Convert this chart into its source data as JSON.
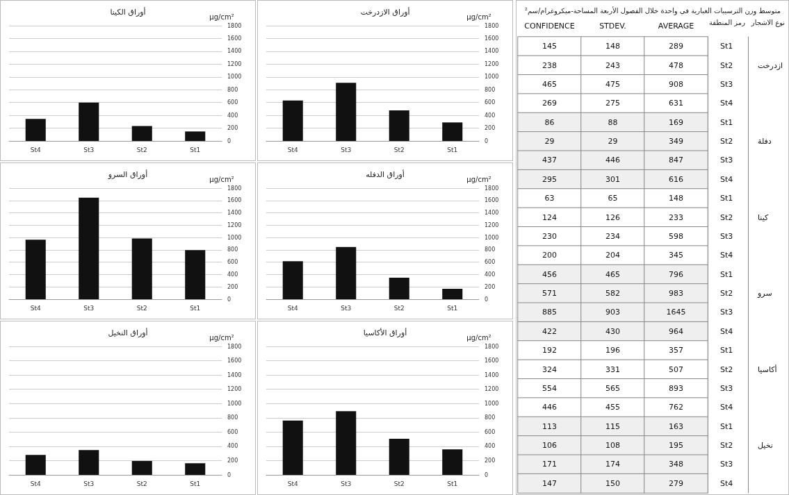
{
  "chart_data": [
    {
      "type": "bar",
      "title": "أوراق الكينا",
      "ylabel": "µg/cm²",
      "categories": [
        "St4",
        "St3",
        "St2",
        "St1"
      ],
      "values": [
        345,
        598,
        233,
        148
      ],
      "color": "#111111",
      "ylim": [
        0,
        1800
      ],
      "yticks": [
        0,
        200,
        400,
        600,
        800,
        1000,
        1200,
        1400,
        1600,
        1800
      ],
      "grid": "y"
    },
    {
      "type": "bar",
      "title": "أوراق الازدرخت",
      "ylabel": "µg/cm²",
      "categories": [
        "St4",
        "St3",
        "St2",
        "St1"
      ],
      "values": [
        631,
        908,
        478,
        289
      ],
      "color": "#111111",
      "ylim": [
        0,
        1800
      ],
      "yticks": [
        0,
        200,
        400,
        600,
        800,
        1000,
        1200,
        1400,
        1600,
        1800
      ],
      "grid": "y"
    },
    {
      "type": "bar",
      "title": "أوراق السرو",
      "ylabel": "µg/cm²",
      "categories": [
        "St4",
        "St3",
        "St2",
        "St1"
      ],
      "values": [
        964,
        1645,
        983,
        796
      ],
      "color": "#111111",
      "ylim": [
        0,
        1800
      ],
      "yticks": [
        0,
        200,
        400,
        600,
        800,
        1000,
        1200,
        1400,
        1600,
        1800
      ],
      "grid": "y"
    },
    {
      "type": "bar",
      "title": "أوراق الدفله",
      "ylabel": "µg/cm²",
      "categories": [
        "St4",
        "St3",
        "St2",
        "St1"
      ],
      "values": [
        616,
        847,
        349,
        169
      ],
      "color": "#111111",
      "ylim": [
        0,
        1800
      ],
      "yticks": [
        0,
        200,
        400,
        600,
        800,
        1000,
        1200,
        1400,
        1600,
        1800
      ],
      "grid": "y"
    },
    {
      "type": "bar",
      "title": "أوراق النخيل",
      "ylabel": "µg/cm²",
      "categories": [
        "St4",
        "St3",
        "St2",
        "St1"
      ],
      "values": [
        279,
        348,
        195,
        163
      ],
      "color": "#111111",
      "ylim": [
        0,
        1800
      ],
      "yticks": [
        0,
        200,
        400,
        600,
        800,
        1000,
        1200,
        1400,
        1600,
        1800
      ],
      "grid": "y"
    },
    {
      "type": "bar",
      "title": "أوراق الأكاسيا",
      "ylabel": "µg/cm²",
      "categories": [
        "St4",
        "St3",
        "St2",
        "St1"
      ],
      "values": [
        762,
        893,
        507,
        357
      ],
      "color": "#111111",
      "ylim": [
        0,
        1800
      ],
      "yticks": [
        0,
        200,
        400,
        600,
        800,
        1000,
        1200,
        1400,
        1600,
        1800
      ],
      "grid": "y"
    },
    {
      "type": "heatmap",
      "data_labels": true,
      "title": "متوسط وزن الترسيبات الغبارية في واحدة خلال الفصول الأربعة المساحة-ميكروغرام/سم²",
      "categories": [
        "CONFIDENCE",
        "STDEV.",
        "AVERAGE"
      ],
      "ylabel": "رمز المنطقة",
      "y2label": "نوع الاشجار",
      "y_categories": [
        "St1",
        "St2",
        "St3",
        "St4",
        "St1",
        "St2",
        "St3",
        "St4",
        "St1",
        "St2",
        "St3",
        "St4",
        "St1",
        "St2",
        "St3",
        "St4",
        "St1",
        "St2",
        "St3",
        "St4",
        "St1",
        "St2",
        "St3",
        "St4"
      ],
      "y2_categories": [
        null,
        "ازدرخت",
        null,
        null,
        null,
        "دفلة",
        null,
        null,
        null,
        "كينا",
        null,
        null,
        null,
        "سرو",
        null,
        null,
        null,
        "أكاسيا",
        null,
        null,
        null,
        "نخيل",
        null,
        null
      ],
      "cells": [
        [
          145,
          148,
          289
        ],
        [
          238,
          243,
          478
        ],
        [
          465,
          475,
          908
        ],
        [
          269,
          275,
          631
        ],
        [
          86,
          88,
          169
        ],
        [
          29,
          29,
          349
        ],
        [
          437,
          446,
          847
        ],
        [
          295,
          301,
          616
        ],
        [
          63,
          65,
          148
        ],
        [
          124,
          126,
          233
        ],
        [
          230,
          234,
          598
        ],
        [
          200,
          204,
          345
        ],
        [
          456,
          465,
          796
        ],
        [
          571,
          582,
          983
        ],
        [
          885,
          903,
          1645
        ],
        [
          422,
          430,
          964
        ],
        [
          192,
          196,
          357
        ],
        [
          324,
          331,
          507
        ],
        [
          554,
          565,
          893
        ],
        [
          446,
          455,
          762
        ],
        [
          113,
          115,
          163
        ],
        [
          106,
          108,
          195
        ],
        [
          171,
          174,
          348
        ],
        [
          147,
          150,
          279
        ]
      ]
    }
  ]
}
